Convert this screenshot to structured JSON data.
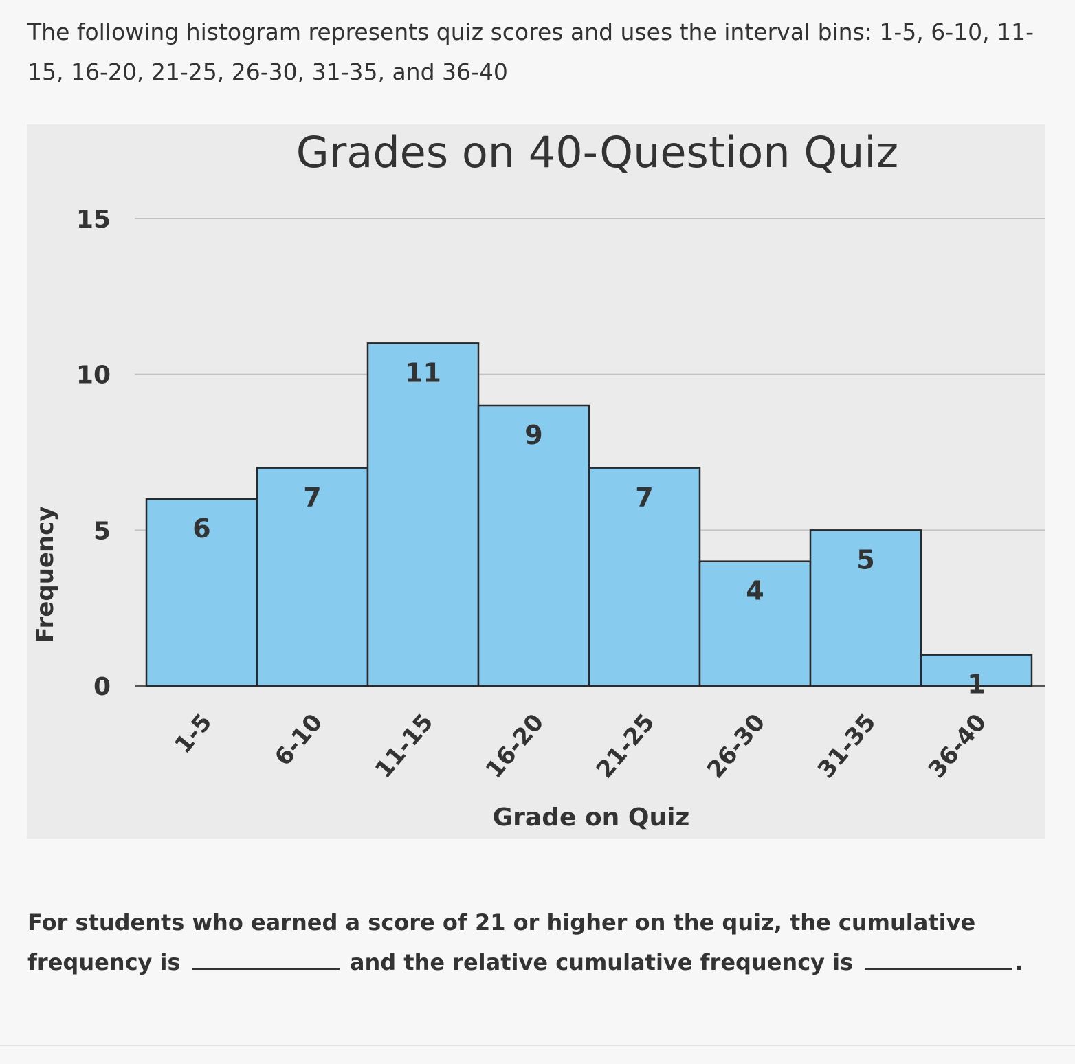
{
  "intro_text": "The following histogram represents quiz scores and uses the interval bins: 1-5, 6-10, 11-15, 16-20, 21-25, 26-30, 31-35, and 36-40",
  "question": {
    "part1": "For students who earned a score of 21 or higher on the quiz, the cumulative frequency is",
    "part2": "and the relative cumulative frequency is",
    "end": "."
  },
  "colors": {
    "panel_background": "#ebebeb",
    "bar_fill": "#87cbef",
    "bar_stroke": "#2a2a2a",
    "gridline": "#c4c4c4",
    "text": "#333333"
  },
  "chart_data": {
    "type": "bar",
    "title": "Grades on 40-Question Quiz",
    "xlabel": "Grade on Quiz",
    "ylabel": "Frequency",
    "categories": [
      "1-5",
      "6-10",
      "11-15",
      "16-20",
      "21-25",
      "26-30",
      "31-35",
      "36-40"
    ],
    "values": [
      6,
      7,
      11,
      9,
      7,
      4,
      5,
      1
    ],
    "data_labels": [
      "6",
      "7",
      "11",
      "9",
      "7",
      "4",
      "5",
      "1"
    ],
    "ylim": [
      0,
      15
    ],
    "yticks": [
      0,
      5,
      10,
      15
    ],
    "ytick_labels": [
      "0",
      "5",
      "10",
      "15"
    ],
    "grid": true,
    "legend": "none"
  }
}
